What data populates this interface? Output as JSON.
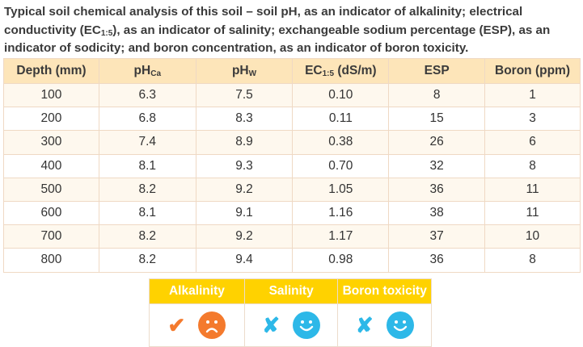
{
  "caption": {
    "part1": "Typical soil chemical analysis of this soil – soil pH, as an indicator of alkalinity; electrical conductivity (EC",
    "sub": "1:5",
    "part2": "), as an indicator of salinity; exchangeable sodium percentage (ESP), as an indicator of sodicity; and boron concentration, as an indicator of boron toxicity."
  },
  "table": {
    "headers": [
      {
        "main": "Depth (mm)",
        "sub": ""
      },
      {
        "main": "pH",
        "sub": "Ca"
      },
      {
        "main": "pH",
        "sub": "W"
      },
      {
        "main": "EC",
        "sub": "1:5",
        "after": " (dS/m)"
      },
      {
        "main": "ESP",
        "sub": ""
      },
      {
        "main": "Boron (ppm)",
        "sub": ""
      }
    ],
    "rows": [
      [
        "100",
        "6.3",
        "7.5",
        "0.10",
        "8",
        "1"
      ],
      [
        "200",
        "6.8",
        "8.3",
        "0.11",
        "15",
        "3"
      ],
      [
        "300",
        "7.4",
        "8.9",
        "0.38",
        "26",
        "6"
      ],
      [
        "400",
        "8.1",
        "9.3",
        "0.70",
        "32",
        "8"
      ],
      [
        "500",
        "8.2",
        "9.2",
        "1.05",
        "36",
        "11"
      ],
      [
        "600",
        "8.1",
        "9.1",
        "1.16",
        "38",
        "11"
      ],
      [
        "700",
        "8.2",
        "9.2",
        "1.17",
        "37",
        "10"
      ],
      [
        "800",
        "8.2",
        "9.4",
        "0.98",
        "36",
        "8"
      ]
    ]
  },
  "summary": {
    "headers": [
      "Alkalinity",
      "Salinity",
      "Boron toxicity"
    ],
    "cells": [
      {
        "mark": "✔",
        "mark_icon": "check-icon",
        "face": "sad-face-icon",
        "color": "#f47a2d"
      },
      {
        "mark": "✘",
        "mark_icon": "cross-icon",
        "face": "happy-face-icon",
        "color": "#2db8e8"
      },
      {
        "mark": "✘",
        "mark_icon": "cross-icon",
        "face": "happy-face-icon",
        "color": "#2db8e8"
      }
    ]
  }
}
